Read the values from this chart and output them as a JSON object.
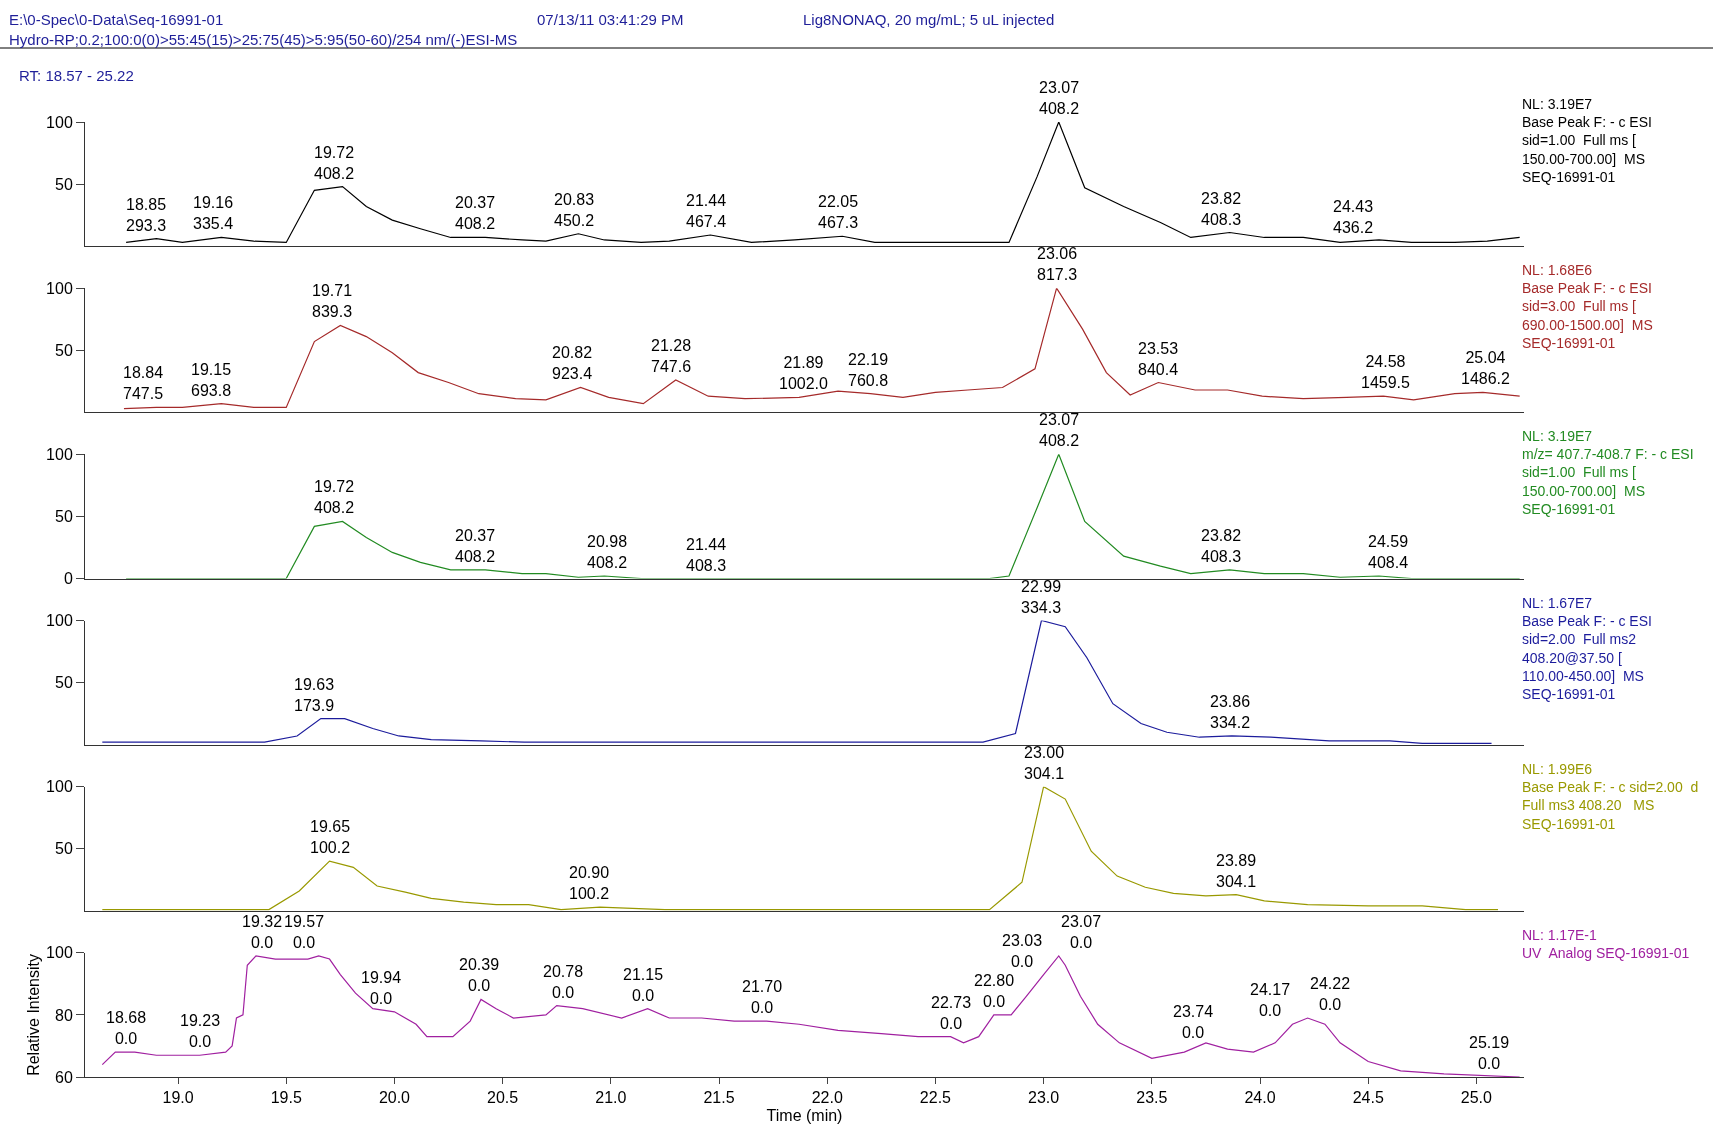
{
  "chart_data": [
    {
      "type": "line",
      "title": "E:\\0-Spec\\0-Data\\Seq-16991-01",
      "subtitle": "Hydro-RP;0.2;100:0(0)>55:45(15)>25:75(45)>5:95(50-60)/254 nm/(-)ESI-MS",
      "x": [
        18.76,
        18.9,
        19.02,
        19.2,
        19.35,
        19.5,
        19.63,
        19.76,
        19.87,
        19.99,
        20.12,
        20.26,
        20.42,
        20.59,
        20.7,
        20.85,
        20.97,
        21.14,
        21.27,
        21.46,
        21.65,
        21.85,
        22.07,
        22.22,
        22.84,
        22.97,
        23.07,
        23.19,
        23.37,
        23.54,
        23.68,
        23.86,
        24.02,
        24.2,
        24.37,
        24.55,
        24.7,
        24.9,
        25.05,
        25.2
      ],
      "series": [
        {
          "color": "#000000",
          "values": [
            3,
            6,
            3,
            7,
            4,
            3,
            45,
            48,
            32,
            21,
            14,
            7,
            7,
            5,
            4,
            10,
            5,
            3,
            4,
            9,
            3,
            5,
            8,
            3,
            3,
            56,
            100,
            47,
            32,
            19,
            7,
            11,
            7,
            7,
            3,
            5,
            3,
            3,
            4,
            7
          ]
        }
      ],
      "xlim": [
        18.57,
        25.22
      ],
      "ylim": [
        0,
        100
      ],
      "yticks": [
        50,
        100
      ],
      "tick_labels": "y",
      "annotations": [
        "07/13/11 03:41:29 PM",
        "Lig8NONAQ, 20 mg/mL; 5 uL injected",
        "RT: 18.57 - 25.22",
        "NL: 3.19E7\nBase Peak F: - c ESI\nsid=1.00  Full ms [\n150.00-700.00]  MS\nSEQ-16991-01",
        {
          "text": "18.85\n293.3",
          "x": 18.85,
          "y": 6
        },
        {
          "text": "19.16\n335.4",
          "x": 19.16,
          "y": 7
        },
        {
          "text": "19.72\n408.2",
          "x": 19.72,
          "y": 48
        },
        {
          "text": "20.37\n408.2",
          "x": 20.37,
          "y": 7
        },
        {
          "text": "20.83\n450.2",
          "x": 20.83,
          "y": 10
        },
        {
          "text": "21.44\n467.4",
          "x": 21.44,
          "y": 9
        },
        {
          "text": "22.05\n467.3",
          "x": 22.05,
          "y": 8
        },
        {
          "text": "23.07\n408.2",
          "x": 23.07,
          "y": 100
        },
        {
          "text": "23.82\n408.3",
          "x": 23.82,
          "y": 11
        },
        {
          "text": "24.43\n436.2",
          "x": 24.43,
          "y": 4
        }
      ]
    },
    {
      "type": "line",
      "x": [
        18.75,
        18.9,
        19.02,
        19.2,
        19.35,
        19.5,
        19.63,
        19.75,
        19.87,
        19.99,
        20.11,
        20.25,
        20.39,
        20.56,
        20.7,
        20.86,
        20.99,
        21.15,
        21.3,
        21.45,
        21.62,
        21.87,
        22.05,
        22.2,
        22.35,
        22.5,
        22.65,
        22.81,
        22.96,
        23.06,
        23.18,
        23.29,
        23.4,
        23.53,
        23.7,
        23.85,
        24.01,
        24.2,
        24.4,
        24.57,
        24.71,
        24.9,
        25.03,
        25.2
      ],
      "series": [
        {
          "color": "#a52a2a",
          "values": [
            3,
            4,
            4,
            7,
            4,
            4,
            57,
            70,
            61,
            48,
            32,
            24,
            15,
            11,
            10,
            20,
            12,
            7,
            26,
            13,
            11,
            12,
            17,
            15,
            12,
            16,
            18,
            20,
            35,
            100,
            67,
            32,
            14,
            24,
            18,
            18,
            13,
            11,
            12,
            13,
            10,
            15,
            16,
            13
          ]
        }
      ],
      "xlim": [
        18.57,
        25.22
      ],
      "ylim": [
        0,
        100
      ],
      "yticks": [
        50,
        100
      ],
      "tick_labels": "y",
      "annotations": [
        "NL: 1.68E6\nBase Peak F: - c ESI\nsid=3.00  Full ms [\n690.00-1500.00]  MS\nSEQ-16991-01",
        {
          "text": "18.84\n747.5",
          "x": 18.84,
          "y": 4
        },
        {
          "text": "19.15\n693.8",
          "x": 19.15,
          "y": 7
        },
        {
          "text": "19.71\n839.3",
          "x": 19.71,
          "y": 70
        },
        {
          "text": "20.82\n923.4",
          "x": 20.82,
          "y": 20
        },
        {
          "text": "21.28\n747.6",
          "x": 21.28,
          "y": 26
        },
        {
          "text": "21.89\n1002.0",
          "x": 21.89,
          "y": 12
        },
        {
          "text": "22.19\n760.8",
          "x": 22.19,
          "y": 15
        },
        {
          "text": "23.06\n817.3",
          "x": 23.06,
          "y": 100
        },
        {
          "text": "23.53\n840.4",
          "x": 23.53,
          "y": 24
        },
        {
          "text": "24.58\n1459.5",
          "x": 24.58,
          "y": 13
        },
        {
          "text": "25.04\n1486.2",
          "x": 25.04,
          "y": 16
        }
      ]
    },
    {
      "type": "line",
      "x": [
        18.76,
        19.5,
        19.63,
        19.76,
        19.87,
        19.99,
        20.12,
        20.26,
        20.42,
        20.59,
        20.7,
        20.85,
        20.97,
        21.14,
        22.75,
        22.84,
        22.97,
        23.07,
        23.19,
        23.37,
        23.54,
        23.68,
        23.86,
        24.02,
        24.2,
        24.37,
        24.55,
        24.7,
        25.2
      ],
      "series": [
        {
          "color": "#228b22",
          "values": [
            0,
            0,
            42,
            46,
            33,
            21,
            13,
            7,
            7,
            4,
            4,
            1,
            2,
            0,
            0,
            2,
            57,
            100,
            46,
            18,
            10,
            4,
            7,
            4,
            4,
            1,
            2,
            0,
            0
          ]
        }
      ],
      "xlim": [
        18.57,
        25.22
      ],
      "ylim": [
        0,
        100
      ],
      "yticks": [
        0,
        50,
        100
      ],
      "tick_labels": "y",
      "annotations": [
        "NL: 3.19E7\nm/z= 407.7-408.7 F: - c ESI\nsid=1.00  Full ms [\n150.00-700.00]  MS\nSEQ-16991-01",
        {
          "text": "19.72\n408.2",
          "x": 19.72,
          "y": 46
        },
        {
          "text": "20.37\n408.2",
          "x": 20.37,
          "y": 7
        },
        {
          "text": "20.98\n408.2",
          "x": 20.98,
          "y": 2
        },
        {
          "text": "21.44\n408.3",
          "x": 21.44,
          "y": 0
        },
        {
          "text": "23.07\n408.2",
          "x": 23.07,
          "y": 100
        },
        {
          "text": "23.82\n408.3",
          "x": 23.82,
          "y": 7
        },
        {
          "text": "24.59\n408.4",
          "x": 24.59,
          "y": 2
        }
      ]
    },
    {
      "type": "line",
      "x": [
        18.65,
        19.4,
        19.55,
        19.66,
        19.77,
        19.9,
        20.02,
        20.17,
        20.4,
        20.6,
        22.72,
        22.87,
        22.99,
        23.1,
        23.2,
        23.32,
        23.45,
        23.57,
        23.72,
        23.87,
        24.05,
        24.32,
        24.6,
        24.75,
        25.07
      ],
      "series": [
        {
          "color": "#1c1c9c",
          "values": [
            2,
            2,
            7,
            21,
            21,
            13,
            7,
            4,
            3,
            2,
            2,
            9,
            100,
            95,
            70,
            33,
            17,
            10,
            6,
            7,
            6,
            3,
            3,
            1,
            1
          ]
        }
      ],
      "xlim": [
        18.57,
        25.22
      ],
      "ylim": [
        0,
        100
      ],
      "yticks": [
        50,
        100
      ],
      "tick_labels": "y",
      "annotations": [
        "NL: 1.67E7\nBase Peak F: - c ESI\nsid=2.00  Full ms2\n408.20@37.50 [\n110.00-450.00]  MS\nSEQ-16991-01",
        {
          "text": "19.63\n173.9",
          "x": 19.63,
          "y": 21
        },
        {
          "text": "22.99\n334.3",
          "x": 22.99,
          "y": 100
        },
        {
          "text": "23.86\n334.2",
          "x": 23.86,
          "y": 7
        }
      ]
    },
    {
      "type": "line",
      "x": [
        18.65,
        19.42,
        19.56,
        19.7,
        19.81,
        19.92,
        20.05,
        20.17,
        20.32,
        20.47,
        20.62,
        20.77,
        20.95,
        21.25,
        22.75,
        22.9,
        23.0,
        23.1,
        23.22,
        23.34,
        23.47,
        23.6,
        23.75,
        23.89,
        24.02,
        24.22,
        24.5,
        24.75,
        24.95,
        25.1
      ],
      "series": [
        {
          "color": "#999900",
          "values": [
            1,
            1,
            16,
            40,
            35,
            20,
            15,
            10,
            7,
            5,
            5,
            1,
            3,
            1,
            1,
            23,
            100,
            90,
            48,
            28,
            19,
            14,
            12,
            13,
            8,
            5,
            4,
            4,
            1,
            1
          ]
        }
      ],
      "xlim": [
        18.57,
        25.22
      ],
      "ylim": [
        0,
        100
      ],
      "yticks": [
        50,
        100
      ],
      "tick_labels": "y",
      "annotations": [
        "NL: 1.99E6\nBase Peak F: - c sid=2.00  d\nFull ms3 408.20   MS\nSEQ-16991-01",
        {
          "text": "19.65\n100.2",
          "x": 19.7,
          "y": 40
        },
        {
          "text": "20.90\n100.2",
          "x": 20.9,
          "y": 3
        },
        {
          "text": "23.00\n304.1",
          "x": 23.0,
          "y": 100
        },
        {
          "text": "23.89\n304.1",
          "x": 23.89,
          "y": 13
        }
      ]
    },
    {
      "type": "line",
      "xlabel": "Time (min)",
      "ylabel": "Relative Intensity",
      "x": [
        18.65,
        18.71,
        18.8,
        18.9,
        19.1,
        19.22,
        19.25,
        19.27,
        19.3,
        19.32,
        19.36,
        19.45,
        19.6,
        19.65,
        19.7,
        19.75,
        19.82,
        19.9,
        20.0,
        20.1,
        20.15,
        20.27,
        20.35,
        20.4,
        20.47,
        20.55,
        20.7,
        20.75,
        20.87,
        21.05,
        21.17,
        21.27,
        21.42,
        21.57,
        21.72,
        21.87,
        22.05,
        22.25,
        22.42,
        22.57,
        22.63,
        22.7,
        22.77,
        22.85,
        22.92,
        23.0,
        23.07,
        23.1,
        23.17,
        23.25,
        23.35,
        23.5,
        23.65,
        23.75,
        23.85,
        23.97,
        24.07,
        24.15,
        24.22,
        24.3,
        24.37,
        24.5,
        24.65,
        24.85,
        25.2
      ],
      "series": [
        {
          "color": "#a020a0",
          "values": [
            64,
            68,
            68,
            67,
            67,
            68,
            70,
            79,
            80,
            96,
            99,
            98,
            98,
            99,
            98,
            93,
            87,
            82,
            81,
            77,
            73,
            73,
            78,
            85,
            82,
            79,
            80,
            83,
            82,
            79,
            82,
            79,
            79,
            78,
            78,
            77,
            75,
            74,
            73,
            73,
            71,
            73,
            80,
            80,
            86,
            93,
            99,
            96,
            86,
            77,
            71,
            66,
            68,
            71,
            69,
            68,
            71,
            77,
            79,
            77,
            71,
            65,
            62,
            61,
            60
          ]
        }
      ],
      "xlim": [
        18.57,
        25.22
      ],
      "xticks": [
        {
          "value": 19,
          "label": "19.0"
        },
        {
          "value": 19.5,
          "label": "19.5"
        },
        {
          "value": 20,
          "label": "20.0"
        },
        {
          "value": 20.5,
          "label": "20.5"
        },
        {
          "value": 21,
          "label": "21.0"
        },
        {
          "value": 21.5,
          "label": "21.5"
        },
        {
          "value": 22,
          "label": "22.0"
        },
        {
          "value": 22.5,
          "label": "22.5"
        },
        {
          "value": 23,
          "label": "23.0"
        },
        {
          "value": 23.5,
          "label": "23.5"
        },
        {
          "value": 24,
          "label": "24.0"
        },
        {
          "value": 24.5,
          "label": "24.5"
        },
        {
          "value": 25,
          "label": "25.0"
        }
      ],
      "ylim": [
        60,
        100
      ],
      "yticks": [
        60,
        80,
        100
      ],
      "annotations": [
        "NL: 1.17E-1\nUV  Analog SEQ-16991-01",
        {
          "text": "18.68\n0.0",
          "x": 18.76,
          "y": 68
        },
        {
          "text": "19.23\n0.0",
          "x": 19.1,
          "y": 67
        },
        {
          "text": "19.32\n0.0",
          "x": 19.39,
          "y": 99
        },
        {
          "text": "19.57\n0.0",
          "x": 19.58,
          "y": 99
        },
        {
          "text": "19.94\n0.0",
          "x": 19.94,
          "y": 81
        },
        {
          "text": "20.39\n0.0",
          "x": 20.39,
          "y": 85
        },
        {
          "text": "20.78\n0.0",
          "x": 20.78,
          "y": 83
        },
        {
          "text": "21.15\n0.0",
          "x": 21.15,
          "y": 82
        },
        {
          "text": "21.70\n0.0",
          "x": 21.7,
          "y": 78
        },
        {
          "text": "22.73\n0.0",
          "x": 22.57,
          "y": 73
        },
        {
          "text": "22.80\n0.0",
          "x": 22.77,
          "y": 80
        },
        {
          "text": "23.03\n0.0",
          "x": 23.0,
          "y": 93
        },
        {
          "text": "23.07\n0.0",
          "x": 23.07,
          "y": 99
        },
        {
          "text": "23.74\n0.0",
          "x": 23.69,
          "y": 70
        },
        {
          "text": "24.17\n0.0",
          "x": 24.15,
          "y": 77
        },
        {
          "text": "24.22\n0.0",
          "x": 24.22,
          "y": 79
        },
        {
          "text": "25.19\n0.0",
          "x": 25.06,
          "y": 60
        }
      ]
    }
  ]
}
